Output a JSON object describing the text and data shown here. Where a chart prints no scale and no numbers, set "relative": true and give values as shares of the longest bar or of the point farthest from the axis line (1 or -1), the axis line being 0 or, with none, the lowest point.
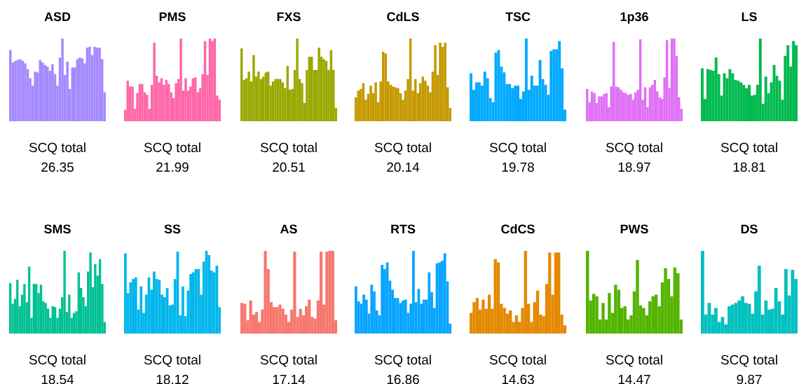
{
  "chart_data": [
    {
      "type": "bar",
      "title": "ASD",
      "relative": true,
      "color": "#a58afe",
      "annotations": [
        "SCQ total",
        "26.35"
      ],
      "categories": [
        null,
        null,
        null,
        null,
        null,
        null,
        null,
        null,
        null,
        null,
        null,
        null,
        null,
        null,
        null,
        null,
        null,
        null,
        null,
        null,
        null,
        null,
        null,
        null,
        null,
        null,
        null,
        null,
        null,
        null,
        null,
        null,
        null,
        null,
        null,
        null,
        null,
        null,
        null
      ],
      "values": [
        0.86,
        0.71,
        0.73,
        0.74,
        0.75,
        0.73,
        0.7,
        0.63,
        0.52,
        0.43,
        0.6,
        0.59,
        0.74,
        0.71,
        0.68,
        0.66,
        0.61,
        0.69,
        0.57,
        0.43,
        0.77,
        1.0,
        0.56,
        0.72,
        0.39,
        0.65,
        0.65,
        0.75,
        0.77,
        0.76,
        0.7,
        0.89,
        0.9,
        0.8,
        0.9,
        0.89,
        0.89,
        0.75,
        0.35
      ]
    },
    {
      "type": "bar",
      "title": "PMS",
      "relative": true,
      "color": "#ff66a8",
      "annotations": [
        "SCQ total",
        "21.99"
      ],
      "categories": [
        null,
        null,
        null,
        null,
        null,
        null,
        null,
        null,
        null,
        null,
        null,
        null,
        null,
        null,
        null,
        null,
        null,
        null,
        null,
        null,
        null,
        null,
        null,
        null,
        null,
        null,
        null,
        null,
        null,
        null,
        null,
        null,
        null,
        null,
        null,
        null,
        null,
        null,
        null,
        null
      ],
      "values": [
        0.14,
        0.49,
        0.42,
        0.42,
        0.15,
        0.34,
        0.45,
        0.45,
        0.35,
        0.32,
        0.15,
        0.44,
        0.95,
        0.55,
        0.47,
        0.52,
        0.44,
        0.5,
        0.45,
        0.35,
        0.28,
        0.46,
        0.51,
        1.0,
        0.37,
        0.52,
        0.37,
        0.42,
        0.52,
        0.53,
        0.35,
        0.4,
        0.57,
        0.97,
        0.56,
        1.0,
        0.97,
        1.0,
        0.31,
        0.26
      ]
    },
    {
      "type": "bar",
      "title": "FXS",
      "relative": true,
      "color": "#99a800",
      "annotations": [
        "SCQ total",
        "20.51"
      ],
      "categories": [
        null,
        null,
        null,
        null,
        null,
        null,
        null,
        null,
        null,
        null,
        null,
        null,
        null,
        null,
        null,
        null,
        null,
        null,
        null,
        null,
        null,
        null,
        null,
        null,
        null,
        null,
        null,
        null,
        null,
        null,
        null,
        null,
        null,
        null,
        null,
        null,
        null,
        null,
        null,
        null
      ],
      "values": [
        0.88,
        0.5,
        0.52,
        0.6,
        0.48,
        0.8,
        0.54,
        0.6,
        0.51,
        0.54,
        0.59,
        0.6,
        0.43,
        0.48,
        0.51,
        0.51,
        0.51,
        0.47,
        0.4,
        0.67,
        0.38,
        0.39,
        0.62,
        1.0,
        0.51,
        0.46,
        0.22,
        0.62,
        0.78,
        0.78,
        0.62,
        0.62,
        0.89,
        0.78,
        0.75,
        0.73,
        0.62,
        0.86,
        0.62,
        0.16
      ]
    },
    {
      "type": "bar",
      "title": "CdLS",
      "relative": true,
      "color": "#c59900",
      "annotations": [
        "SCQ total",
        "20.14"
      ],
      "categories": [
        null,
        null,
        null,
        null,
        null,
        null,
        null,
        null,
        null,
        null,
        null,
        null,
        null,
        null,
        null,
        null,
        null,
        null,
        null,
        null,
        null,
        null,
        null,
        null,
        null,
        null,
        null,
        null,
        null,
        null,
        null,
        null,
        null,
        null,
        null,
        null,
        null,
        null,
        null
      ],
      "values": [
        0.29,
        0.37,
        0.39,
        0.46,
        0.26,
        0.33,
        0.43,
        0.34,
        0.47,
        0.23,
        0.48,
        0.84,
        0.82,
        0.48,
        0.44,
        0.42,
        0.41,
        0.4,
        0.34,
        0.26,
        0.37,
        0.51,
        1.0,
        0.37,
        0.51,
        0.34,
        0.46,
        0.54,
        0.49,
        0.43,
        0.35,
        0.6,
        0.92,
        0.56,
        0.95,
        0.9,
        0.95,
        0.41,
        0.16
      ]
    },
    {
      "type": "bar",
      "title": "TSC",
      "relative": true,
      "color": "#00a9ff",
      "annotations": [
        "SCQ total",
        "19.78"
      ],
      "categories": [
        null,
        null,
        null,
        null,
        null,
        null,
        null,
        null,
        null,
        null,
        null,
        null,
        null,
        null,
        null,
        null,
        null,
        null,
        null,
        null,
        null,
        null,
        null,
        null,
        null,
        null,
        null,
        null,
        null,
        null,
        null,
        null,
        null,
        null,
        null
      ],
      "values": [
        0.58,
        0.38,
        0.47,
        0.47,
        0.43,
        0.6,
        0.52,
        0.28,
        0.23,
        0.83,
        0.86,
        0.66,
        0.59,
        0.45,
        0.45,
        0.4,
        0.43,
        0.43,
        0.27,
        0.36,
        1.0,
        0.38,
        0.55,
        0.43,
        0.43,
        0.74,
        0.51,
        0.44,
        0.32,
        0.85,
        0.87,
        0.87,
        0.97,
        0.64,
        0.14
      ]
    },
    {
      "type": "bar",
      "title": "1p36",
      "relative": true,
      "color": "#e06ff6",
      "annotations": [
        "SCQ total",
        "18.97"
      ],
      "categories": [
        null,
        null,
        null,
        null,
        null,
        null,
        null,
        null,
        null,
        null,
        null,
        null,
        null,
        null,
        null,
        null,
        null,
        null,
        null,
        null,
        null,
        null,
        null,
        null,
        null,
        null,
        null,
        null,
        null,
        null,
        null,
        null,
        null,
        null,
        null,
        null,
        null,
        null,
        null,
        null
      ],
      "values": [
        0.39,
        0.23,
        0.36,
        0.34,
        0.22,
        0.3,
        0.3,
        0.33,
        0.34,
        0.17,
        0.42,
        0.96,
        0.42,
        0.41,
        0.38,
        0.35,
        0.34,
        0.32,
        0.33,
        0.26,
        0.35,
        0.38,
        0.99,
        0.26,
        0.41,
        0.17,
        0.41,
        0.44,
        0.5,
        0.36,
        0.29,
        0.27,
        0.53,
        0.98,
        0.4,
        1.0,
        1.0,
        0.79,
        0.29,
        0.15
      ]
    },
    {
      "type": "bar",
      "title": "LS",
      "relative": true,
      "color": "#00ba4f",
      "annotations": [
        "SCQ total",
        "18.81"
      ],
      "categories": [
        null,
        null,
        null,
        null,
        null,
        null,
        null,
        null,
        null,
        null,
        null,
        null,
        null,
        null,
        null,
        null,
        null,
        null,
        null,
        null,
        null,
        null,
        null,
        null,
        null,
        null,
        null,
        null,
        null,
        null,
        null,
        null,
        null,
        null,
        null
      ],
      "values": [
        0.64,
        0.27,
        0.63,
        0.62,
        0.61,
        0.77,
        0.57,
        0.31,
        0.58,
        0.52,
        0.63,
        0.58,
        0.5,
        0.49,
        0.47,
        0.44,
        0.4,
        0.44,
        0.31,
        0.32,
        0.44,
        1.0,
        0.21,
        0.54,
        0.34,
        0.47,
        0.68,
        0.55,
        0.49,
        0.26,
        0.79,
        0.92,
        0.66,
        0.97,
        0.92
      ]
    },
    {
      "type": "bar",
      "title": "SMS",
      "relative": true,
      "color": "#00c093",
      "annotations": [
        "SCQ total",
        "18.54"
      ],
      "categories": [
        null,
        null,
        null,
        null,
        null,
        null,
        null,
        null,
        null,
        null,
        null,
        null,
        null,
        null,
        null,
        null,
        null,
        null,
        null,
        null,
        null,
        null,
        null,
        null,
        null,
        null,
        null,
        null,
        null,
        null,
        null,
        null,
        null,
        null,
        null,
        null,
        null,
        null,
        null,
        null,
        null
      ],
      "values": [
        0.61,
        0.36,
        0.42,
        0.65,
        0.33,
        0.47,
        0.6,
        0.38,
        0.81,
        0.19,
        0.6,
        0.6,
        0.49,
        0.59,
        0.39,
        0.37,
        0.3,
        0.19,
        0.33,
        0.32,
        0.19,
        0.3,
        0.44,
        1.0,
        0.26,
        0.47,
        0.19,
        0.25,
        0.27,
        0.74,
        0.55,
        0.44,
        0.33,
        0.75,
        0.98,
        0.56,
        0.84,
        0.7,
        0.9,
        0.6,
        0.14
      ]
    },
    {
      "type": "bar",
      "title": "SS",
      "relative": true,
      "color": "#00b6eb",
      "annotations": [
        "SCQ total",
        "18.12"
      ],
      "categories": [
        null,
        null,
        null,
        null,
        null,
        null,
        null,
        null,
        null,
        null,
        null,
        null,
        null,
        null,
        null,
        null,
        null,
        null,
        null,
        null,
        null,
        null,
        null,
        null,
        null,
        null,
        null,
        null,
        null,
        null,
        null,
        null,
        null,
        null,
        null,
        null,
        null
      ],
      "values": [
        0.97,
        0.49,
        0.62,
        0.66,
        0.68,
        0.29,
        0.57,
        0.25,
        0.47,
        0.68,
        0.53,
        0.75,
        0.66,
        0.65,
        0.47,
        0.44,
        0.55,
        0.34,
        0.35,
        0.66,
        0.99,
        0.22,
        0.57,
        0.21,
        0.52,
        0.72,
        0.74,
        0.78,
        0.78,
        0.47,
        0.87,
        1.0,
        0.95,
        0.76,
        0.74,
        0.82,
        0.32
      ]
    },
    {
      "type": "bar",
      "title": "AS",
      "relative": true,
      "color": "#f8766d",
      "annotations": [
        "SCQ total",
        "17.14"
      ],
      "categories": [
        null,
        null,
        null,
        null,
        null,
        null,
        null,
        null,
        null,
        null,
        null,
        null,
        null,
        null,
        null,
        null,
        null,
        null,
        null,
        null,
        null,
        null,
        null,
        null,
        null,
        null,
        null,
        null,
        null,
        null,
        null,
        null,
        null
      ],
      "values": [
        0.37,
        0.36,
        0.16,
        0.4,
        0.23,
        0.26,
        0.14,
        0.29,
        1.0,
        0.78,
        0.38,
        0.32,
        0.32,
        0.35,
        0.3,
        0.23,
        0.14,
        0.29,
        0.99,
        0.2,
        0.3,
        0.22,
        0.33,
        0.41,
        0.2,
        0.18,
        0.4,
        0.99,
        0.35,
        0.99,
        1.0,
        1.0,
        0.16
      ]
    },
    {
      "type": "bar",
      "title": "RTS",
      "relative": true,
      "color": "#06a4ff",
      "annotations": [
        "SCQ total",
        "16.86"
      ],
      "categories": [
        null,
        null,
        null,
        null,
        null,
        null,
        null,
        null,
        null,
        null,
        null,
        null,
        null,
        null,
        null,
        null,
        null,
        null,
        null,
        null,
        null,
        null,
        null,
        null,
        null,
        null,
        null,
        null,
        null,
        null,
        null,
        null,
        null,
        null,
        null,
        null,
        null
      ],
      "values": [
        0.57,
        0.39,
        0.36,
        0.47,
        0.41,
        0.24,
        0.59,
        0.51,
        0.28,
        0.22,
        0.83,
        0.78,
        0.86,
        0.64,
        0.53,
        0.43,
        0.43,
        0.37,
        0.4,
        0.41,
        0.25,
        0.36,
        1.0,
        0.38,
        0.54,
        0.36,
        0.41,
        0.41,
        0.74,
        0.5,
        0.31,
        0.85,
        0.86,
        0.88,
        0.97,
        0.63,
        0.12
      ]
    },
    {
      "type": "bar",
      "title": "CdCS",
      "relative": true,
      "color": "#e38900",
      "annotations": [
        "SCQ total",
        "14.63"
      ],
      "categories": [
        null,
        null,
        null,
        null,
        null,
        null,
        null,
        null,
        null,
        null,
        null,
        null,
        null,
        null,
        null,
        null,
        null,
        null,
        null,
        null,
        null,
        null,
        null,
        null,
        null,
        null,
        null,
        null,
        null,
        null,
        null,
        null
      ],
      "values": [
        0.25,
        0.38,
        0.43,
        0.29,
        0.41,
        0.3,
        0.47,
        0.3,
        0.9,
        0.86,
        0.36,
        0.31,
        0.24,
        0.28,
        0.14,
        0.22,
        0.14,
        0.31,
        1.0,
        0.36,
        0.14,
        0.38,
        0.52,
        0.23,
        0.21,
        0.6,
        0.98,
        0.47,
        0.98,
        0.98,
        0.23,
        0.1
      ]
    },
    {
      "type": "bar",
      "title": "PWS",
      "relative": true,
      "color": "#53b400",
      "annotations": [
        "SCQ total",
        "14.47"
      ],
      "categories": [
        null,
        null,
        null,
        null,
        null,
        null,
        null,
        null,
        null,
        null,
        null,
        null,
        null,
        null,
        null,
        null,
        null,
        null,
        null,
        null,
        null,
        null,
        null,
        null,
        null,
        null,
        null,
        null,
        null,
        null,
        null
      ],
      "values": [
        1.0,
        0.4,
        0.48,
        0.45,
        0.17,
        0.37,
        0.17,
        0.49,
        0.25,
        0.59,
        0.53,
        0.31,
        0.33,
        0.17,
        0.22,
        0.51,
        0.89,
        0.34,
        0.31,
        0.22,
        0.39,
        0.45,
        0.47,
        0.33,
        0.62,
        0.79,
        0.66,
        0.45,
        0.8,
        0.73,
        0.17
      ]
    },
    {
      "type": "bar",
      "title": "DS",
      "relative": true,
      "color": "#00c0c0",
      "annotations": [
        "SCQ total",
        "9.87"
      ],
      "categories": [
        null,
        null,
        null,
        null,
        null,
        null,
        null,
        null,
        null,
        null,
        null,
        null,
        null,
        null,
        null,
        null,
        null,
        null,
        null,
        null,
        null,
        null,
        null,
        null,
        null,
        null,
        null,
        null,
        null
      ],
      "values": [
        1.0,
        0.23,
        0.37,
        0.23,
        0.31,
        0.14,
        0.2,
        0.11,
        0.33,
        0.35,
        0.37,
        0.4,
        0.45,
        0.37,
        0.36,
        0.24,
        0.51,
        0.82,
        0.23,
        0.4,
        0.29,
        0.3,
        0.55,
        0.39,
        0.23,
        0.78,
        0.46,
        0.77,
        0.66
      ]
    }
  ]
}
